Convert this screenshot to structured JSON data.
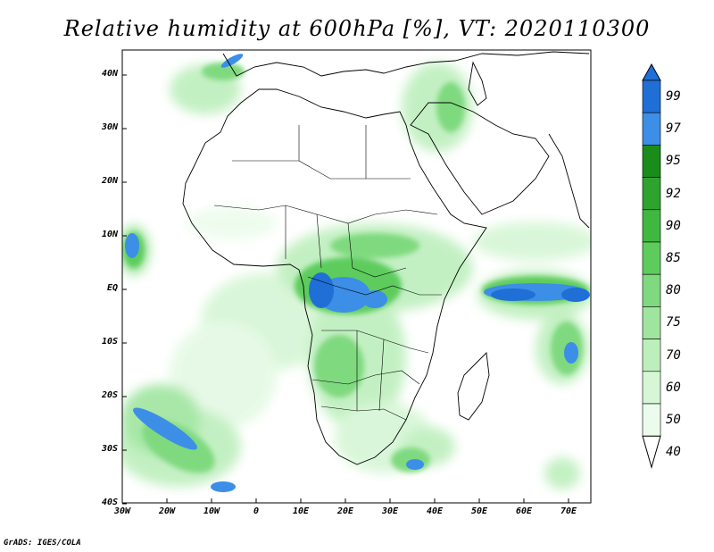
{
  "title": "Relative humidity at 600hPa [%], VT: 2020110300",
  "credit": "GrADS: IGES/COLA",
  "map": {
    "lon_range": [
      -30,
      75
    ],
    "lat_range": [
      -40,
      45
    ],
    "y_ticks": [
      "40N",
      "30N",
      "20N",
      "10N",
      "EQ",
      "10S",
      "20S",
      "30S",
      "40S"
    ],
    "x_ticks": [
      "30W",
      "20W",
      "10W",
      "0",
      "10E",
      "20E",
      "30E",
      "40E",
      "50E",
      "60E",
      "70E"
    ],
    "humid_regions": [
      {
        "name": "central-africa",
        "level": 95
      },
      {
        "name": "indian-ocean-band",
        "level": 95
      },
      {
        "name": "south-atlantic-band",
        "level": 95
      },
      {
        "name": "west-atlantic",
        "level": 95
      },
      {
        "name": "gulf-of-guinea-plume",
        "level": 75
      },
      {
        "name": "mediterranean",
        "level": 85
      },
      {
        "name": "southern-africa",
        "level": 80
      }
    ]
  },
  "colorbar": {
    "levels": [
      "99",
      "97",
      "95",
      "92",
      "90",
      "85",
      "80",
      "75",
      "70",
      "60",
      "50",
      "40"
    ],
    "colors": [
      "#1f6fd6",
      "#3c8ee6",
      "#1a8c1a",
      "#2ea32e",
      "#3fb83f",
      "#5dcc5d",
      "#7fd97f",
      "#9fe59f",
      "#bdefbd",
      "#d6f6d6",
      "#ecfcec"
    ]
  }
}
